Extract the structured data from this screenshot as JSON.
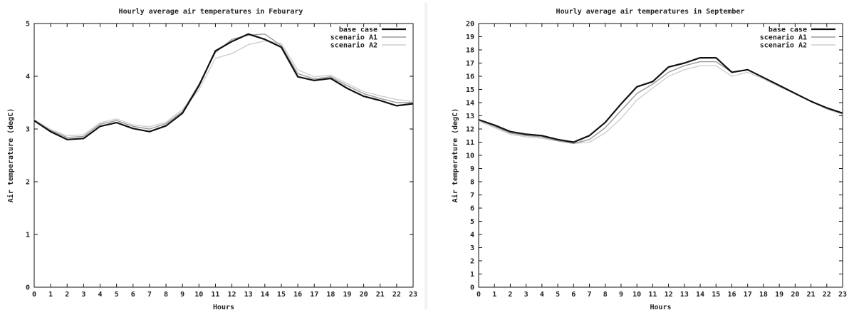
{
  "chart_data": [
    {
      "type": "line",
      "title": "Hourly average air temperatures in Feburary",
      "xlabel": "Hours",
      "ylabel": "Air temperature (degC)",
      "xlim": [
        0,
        23
      ],
      "ylim": [
        0,
        5
      ],
      "x_ticks": [
        "0",
        "1",
        "2",
        "3",
        "4",
        "5",
        "6",
        "7",
        "8",
        "9",
        "10",
        "11",
        "12",
        "13",
        "14",
        "15",
        "16",
        "17",
        "18",
        "19",
        "20",
        "21",
        "22",
        "23"
      ],
      "y_ticks": [
        "0",
        "1",
        "2",
        "3",
        "4",
        "5"
      ],
      "x": [
        0,
        1,
        2,
        3,
        4,
        5,
        6,
        7,
        8,
        9,
        10,
        11,
        12,
        13,
        14,
        15,
        16,
        17,
        18,
        19,
        20,
        21,
        22,
        23
      ],
      "legend_position": "top-right",
      "series": [
        {
          "name": "base case",
          "color": "#111111",
          "width": 2.2,
          "values": [
            3.16,
            2.95,
            2.8,
            2.82,
            3.05,
            3.12,
            3.01,
            2.95,
            3.06,
            3.3,
            3.82,
            4.48,
            4.66,
            4.8,
            4.7,
            4.55,
            3.99,
            3.92,
            3.96,
            3.77,
            3.62,
            3.54,
            3.44,
            3.48
          ]
        },
        {
          "name": "scenario A1",
          "color": "#9a9a9a",
          "width": 1.4,
          "values": [
            3.16,
            2.97,
            2.84,
            2.86,
            3.09,
            3.16,
            3.05,
            3.0,
            3.1,
            3.33,
            3.85,
            4.45,
            4.7,
            4.78,
            4.8,
            4.58,
            4.05,
            3.95,
            3.99,
            3.82,
            3.67,
            3.58,
            3.5,
            3.5
          ]
        },
        {
          "name": "scenario A2",
          "color": "#cfcfcf",
          "width": 1.4,
          "values": [
            3.18,
            2.99,
            2.87,
            2.89,
            3.12,
            3.19,
            3.08,
            3.04,
            3.13,
            3.37,
            3.74,
            4.34,
            4.43,
            4.6,
            4.67,
            4.62,
            4.12,
            3.99,
            4.02,
            3.86,
            3.71,
            3.63,
            3.56,
            3.52
          ]
        }
      ]
    },
    {
      "type": "line",
      "title": "Hourly average air temperatures in September",
      "xlabel": "Hours",
      "ylabel": "Air temperature (degC)",
      "xlim": [
        0,
        23
      ],
      "ylim": [
        0,
        20
      ],
      "x_ticks": [
        "0",
        "1",
        "2",
        "3",
        "4",
        "5",
        "6",
        "7",
        "8",
        "9",
        "10",
        "11",
        "12",
        "13",
        "14",
        "15",
        "16",
        "17",
        "18",
        "19",
        "20",
        "21",
        "22",
        "23"
      ],
      "y_ticks": [
        "0",
        "1",
        "2",
        "3",
        "4",
        "5",
        "6",
        "7",
        "8",
        "9",
        "10",
        "11",
        "12",
        "13",
        "14",
        "15",
        "16",
        "17",
        "18",
        "19",
        "20"
      ],
      "x": [
        0,
        1,
        2,
        3,
        4,
        5,
        6,
        7,
        8,
        9,
        10,
        11,
        12,
        13,
        14,
        15,
        16,
        17,
        18,
        19,
        20,
        21,
        22,
        23
      ],
      "legend_position": "top-right",
      "series": [
        {
          "name": "base case",
          "color": "#111111",
          "width": 2.2,
          "values": [
            12.7,
            12.3,
            11.8,
            11.6,
            11.5,
            11.2,
            11.0,
            11.5,
            12.5,
            13.9,
            15.2,
            15.6,
            16.7,
            17.0,
            17.4,
            17.4,
            16.3,
            16.5,
            15.9,
            15.3,
            14.7,
            14.1,
            13.6,
            13.2
          ]
        },
        {
          "name": "scenario A1",
          "color": "#9a9a9a",
          "width": 1.4,
          "values": [
            12.7,
            12.2,
            11.7,
            11.5,
            11.4,
            11.1,
            10.9,
            11.2,
            12.1,
            13.4,
            14.7,
            15.4,
            16.3,
            16.8,
            17.1,
            17.1,
            16.3,
            16.5,
            15.9,
            15.3,
            14.7,
            14.1,
            13.6,
            13.2
          ]
        },
        {
          "name": "scenario A2",
          "color": "#cfcfcf",
          "width": 1.4,
          "values": [
            12.6,
            12.1,
            11.6,
            11.4,
            11.3,
            11.1,
            10.9,
            11.0,
            11.7,
            12.8,
            14.2,
            15.1,
            16.0,
            16.5,
            16.8,
            16.8,
            16.0,
            16.3,
            15.8,
            15.2,
            14.7,
            14.1,
            13.5,
            13.1
          ]
        }
      ]
    }
  ]
}
